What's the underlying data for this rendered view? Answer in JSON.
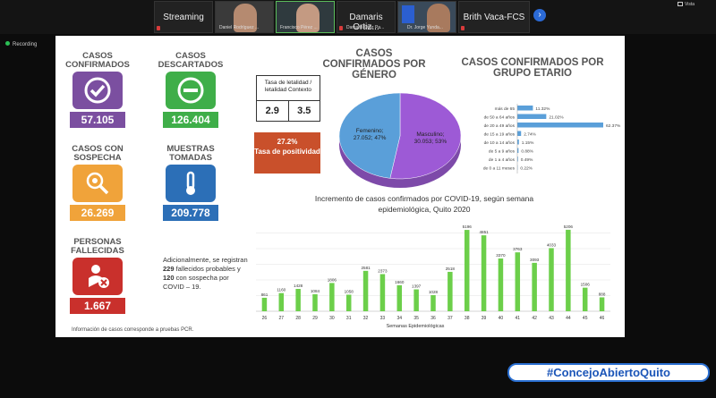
{
  "topbar": {
    "streaming_label": "Streaming",
    "tiles": [
      {
        "name": "",
        "caption": "Daniel Rodríguez ..."
      },
      {
        "name": "",
        "caption": "Francisco Pérez ..."
      },
      {
        "name": "Damaris Ortiz...",
        "caption": "Damaris Ortiz Pa..."
      },
      {
        "name": "",
        "caption": "Dr. Jorge Yunda..."
      },
      {
        "name": "Brith Vaca-FCS",
        "caption": ""
      }
    ],
    "vista_label": "Vista"
  },
  "recording_label": "Recording",
  "slide": {
    "indicators": [
      {
        "label": "CASOS CONFIRMADOS",
        "value": "57.105",
        "color": "#7b4fa0",
        "icon": "check-circle-icon"
      },
      {
        "label": "CASOS DESCARTADOS",
        "value": "126.404",
        "color": "#3fae49",
        "icon": "minus-circle-icon"
      },
      {
        "label": "CASOS CON SOSPECHA",
        "value": "26.269",
        "color": "#f0a33a",
        "icon": "magnifier-virus-icon"
      },
      {
        "label": "MUESTRAS TOMADAS",
        "value": "209.778",
        "color": "#2c6fb7",
        "icon": "thermometer-icon"
      },
      {
        "label": "PERSONAS FALLECIDAS",
        "value": "1.667",
        "color": "#c9302c",
        "icon": "person-x-icon"
      }
    ],
    "tasa": {
      "header": "Tasa de letalidad / letalidad Contexto",
      "val1": "2.9",
      "val2": "3.5"
    },
    "positividad": {
      "pct": "27.2%",
      "label": "Tasa de positividad"
    },
    "note": {
      "pre": "Adicionalmente, se registran ",
      "n1": "229",
      "mid": " fallecidos probables y ",
      "n2": "120",
      "post": " con sospecha por COVID – 19."
    },
    "footnote": "Información de casos corresponde a pruebas PCR.",
    "gender_title": "CASOS CONFIRMADOS POR GÉNERO",
    "age_title": "CASOS CONFIRMADOS POR GRUPO ETARIO",
    "weekly_title": "Incremento de casos confirmados por COVID-19, según semana epidemiológica, Quito 2020"
  },
  "hashtag": "#ConcejoAbiertoQuito",
  "chart_data": [
    {
      "type": "pie",
      "title": "CASOS CONFIRMADOS POR GÉNERO",
      "slices": [
        {
          "label": "Masculino",
          "value": 30053,
          "display": "Masculino; 30.053; 53%",
          "color": "#9d5ad6"
        },
        {
          "label": "Femenino",
          "value": 27052,
          "display": "Femenino; 27.052; 47%",
          "color": "#5a9fd9"
        }
      ]
    },
    {
      "type": "bar",
      "orientation": "horizontal",
      "title": "CASOS CONFIRMADOS POR GRUPO ETARIO",
      "categories": [
        "más de 65",
        "de 50 a 64 años",
        "de 20 a 49 años",
        "de 15 a 19 años",
        "de 10 a 14 años",
        "de 5 a 9 años",
        "de 1 a 4 años",
        "de 0 a 11 meses"
      ],
      "values": [
        11.32,
        21.02,
        62.37,
        2.74,
        1.15,
        0.88,
        0.49,
        0.22
      ],
      "labels": [
        "11.32%",
        "21.02%",
        "62.37%",
        "2.74%",
        "1.15%",
        "0.88%",
        "0.49%",
        "0.22%"
      ],
      "color": "#5a9fd9"
    },
    {
      "type": "bar",
      "title": "Incremento de casos confirmados por COVID-19, según semana epidemiológica, Quito 2020",
      "xlabel": "Semanas Epidemiológicas",
      "categories": [
        "26",
        "27",
        "28",
        "29",
        "30",
        "31",
        "32",
        "33",
        "34",
        "35",
        "36",
        "37",
        "38",
        "39",
        "40",
        "41",
        "42",
        "43",
        "44",
        "45",
        "46"
      ],
      "values": [
        861,
        1160,
        1428,
        1084,
        1806,
        1058,
        2581,
        2373,
        1660,
        1397,
        1028,
        2518,
        5196,
        4851,
        3370,
        3763,
        3093,
        4033,
        5206,
        1506,
        888
      ],
      "ylim": [
        0,
        5600
      ],
      "color": "#6ccf4a"
    }
  ]
}
